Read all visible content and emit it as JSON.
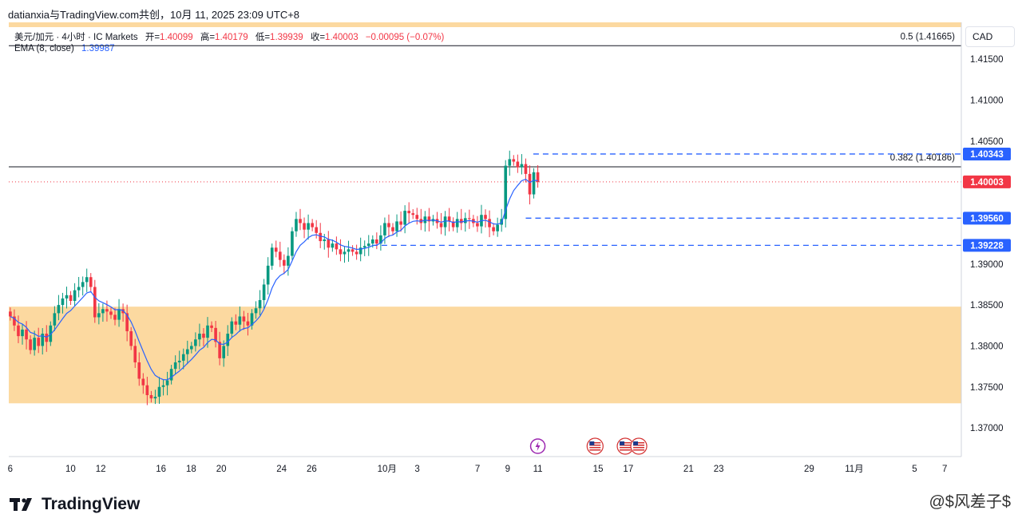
{
  "header": {
    "attribution": "datianxia与TradingView.com共创，10月 11, 2025 23:09 UTC+8"
  },
  "legend": {
    "symbol": "美元/加元 · 4小时 · IC Markets",
    "open_label": "开=",
    "open": "1.40099",
    "high_label": "高=",
    "high": "1.40179",
    "low_label": "低=",
    "low": "1.39939",
    "close_label": "收=",
    "close": "1.40003",
    "change": "−0.00095 (−0.07%)",
    "ema_label": "EMA (8, close)",
    "ema_value": "1.39987"
  },
  "currency_button": "CAD",
  "footer": {
    "logo_text": "TradingView",
    "watermark": "@$风差子$"
  },
  "colors": {
    "up": "#089981",
    "down": "#f23645",
    "ema": "#2962ff",
    "zone": "#fcd9a0",
    "level": "#2962ff"
  },
  "chart_data": {
    "type": "candlestick",
    "symbol": "USD/CAD",
    "timeframe": "4h",
    "y_range": [
      1.3665,
      1.4195
    ],
    "y_ticks": [
      "1.41500",
      "1.41000",
      "1.40500",
      "1.39000",
      "1.38500",
      "1.38000",
      "1.37500",
      "1.37000"
    ],
    "x_ticks": [
      {
        "label": "6",
        "day": 6
      },
      {
        "label": "10",
        "day": 10
      },
      {
        "label": "12",
        "day": 12
      },
      {
        "label": "16",
        "day": 16
      },
      {
        "label": "18",
        "day": 18
      },
      {
        "label": "20",
        "day": 20
      },
      {
        "label": "24",
        "day": 24
      },
      {
        "label": "26",
        "day": 26
      },
      {
        "label": "10月",
        "day": 31
      },
      {
        "label": "3",
        "day": 33
      },
      {
        "label": "7",
        "day": 37
      },
      {
        "label": "9",
        "day": 39
      },
      {
        "label": "11",
        "day": 41
      },
      {
        "label": "15",
        "day": 45
      },
      {
        "label": "17",
        "day": 47
      },
      {
        "label": "21",
        "day": 51
      },
      {
        "label": "23",
        "day": 53
      },
      {
        "label": "29",
        "day": 59
      },
      {
        "label": "11月",
        "day": 62
      },
      {
        "label": "5",
        "day": 66
      },
      {
        "label": "7",
        "day": 68
      }
    ],
    "x_span_days": [
      5.9,
      69.1
    ],
    "fib_levels": [
      {
        "label": "0.5 (1.41665)",
        "price": 1.41665
      },
      {
        "label": "0.382 (1.40186)",
        "price": 1.40186
      }
    ],
    "price_tags": [
      {
        "text": "1.40343",
        "price": 1.40343,
        "style": "blue"
      },
      {
        "text": "1.40003",
        "price": 1.40003,
        "style": "red"
      },
      {
        "text": "1.39560",
        "price": 1.3956,
        "style": "blue"
      },
      {
        "text": "1.39228",
        "price": 1.39228,
        "style": "blue"
      }
    ],
    "dashed_levels": [
      {
        "price": 1.40343,
        "from_day": 40.7
      },
      {
        "price": 1.3956,
        "from_day": 40.2
      },
      {
        "price": 1.39228,
        "from_day": 30.0
      }
    ],
    "last_price": 1.40003,
    "zone": {
      "from": 1.373,
      "to": 1.3848
    },
    "closes": [
      1.3836,
      1.3825,
      1.3812,
      1.382,
      1.3808,
      1.3795,
      1.381,
      1.38,
      1.3815,
      1.3805,
      1.3825,
      1.384,
      1.385,
      1.3858,
      1.3862,
      1.3855,
      1.3868,
      1.3872,
      1.3878,
      1.3884,
      1.3872,
      1.3835,
      1.384,
      1.3845,
      1.3842,
      1.3838,
      1.3832,
      1.3845,
      1.384,
      1.3818,
      1.38,
      1.378,
      1.376,
      1.3752,
      1.374,
      1.3736,
      1.3738,
      1.375,
      1.3752,
      1.3758,
      1.3772,
      1.378,
      1.3782,
      1.379,
      1.3796,
      1.38,
      1.3808,
      1.3815,
      1.381,
      1.3825,
      1.3822,
      1.3805,
      1.3785,
      1.38,
      1.3815,
      1.383,
      1.3826,
      1.3836,
      1.383,
      1.3825,
      1.384,
      1.3846,
      1.3856,
      1.3875,
      1.3898,
      1.392,
      1.3915,
      1.3905,
      1.3898,
      1.391,
      1.394,
      1.3955,
      1.395,
      1.3942,
      1.395,
      1.3945,
      1.3938,
      1.3928,
      1.393,
      1.392,
      1.3925,
      1.3918,
      1.3912,
      1.3915,
      1.3918,
      1.3915,
      1.3912,
      1.392,
      1.3922,
      1.3925,
      1.393,
      1.3925,
      1.3935,
      1.395,
      1.3945,
      1.394,
      1.3952,
      1.3948,
      1.3965,
      1.3962,
      1.396,
      1.3955,
      1.395,
      1.3958,
      1.3952,
      1.3955,
      1.395,
      1.3945,
      1.3958,
      1.3952,
      1.3945,
      1.3955,
      1.395,
      1.3956,
      1.3955,
      1.395,
      1.3946,
      1.396,
      1.3955,
      1.3945,
      1.394,
      1.3948,
      1.3955,
      1.402,
      1.4028,
      1.4025,
      1.4018,
      1.4022,
      1.401,
      1.3985,
      1.4012,
      1.4
    ],
    "ema": {
      "name": "EMA (8, close)",
      "period": 8
    },
    "event_icons": [
      {
        "name": "lightning-event-icon",
        "day": 41.0
      },
      {
        "name": "us-flag-event-icon",
        "day": 44.8
      },
      {
        "name": "us-flag-event-icon",
        "day": 46.8
      },
      {
        "name": "us-flag-event-icon",
        "day": 47.7
      }
    ]
  }
}
